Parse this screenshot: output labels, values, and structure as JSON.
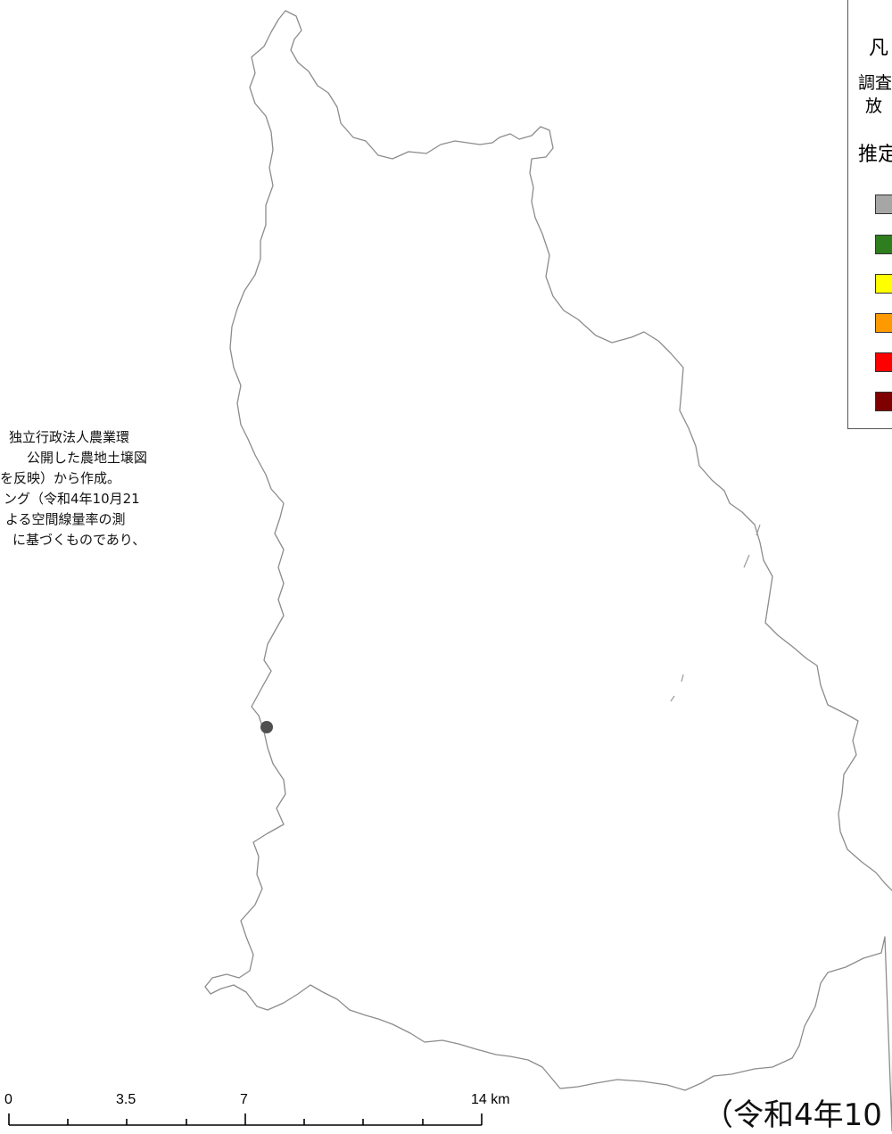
{
  "legend": {
    "title": "凡",
    "survey": "調査",
    "radiation": "放",
    "estimated": "推定",
    "swatch_colors": [
      "#a6a6a6",
      "#2e7d1e",
      "#ffff00",
      "#ff9900",
      "#ff0000",
      "#7f0000"
    ]
  },
  "note": {
    "lines": [
      "独立行政法人農業環",
      "公開した農地土壌図",
      "を反映）から作成。",
      "ング（令和4年10月21",
      "よる空間線量率の測",
      "に基づくものであり、"
    ]
  },
  "scale_bar": {
    "labels": [
      "0",
      "3.5",
      "7",
      "14 km"
    ]
  },
  "date_caption": "（令和4年10",
  "colors": {
    "boundary": "#8c8c8c",
    "point": "#505050",
    "legend_border": "#555555"
  }
}
